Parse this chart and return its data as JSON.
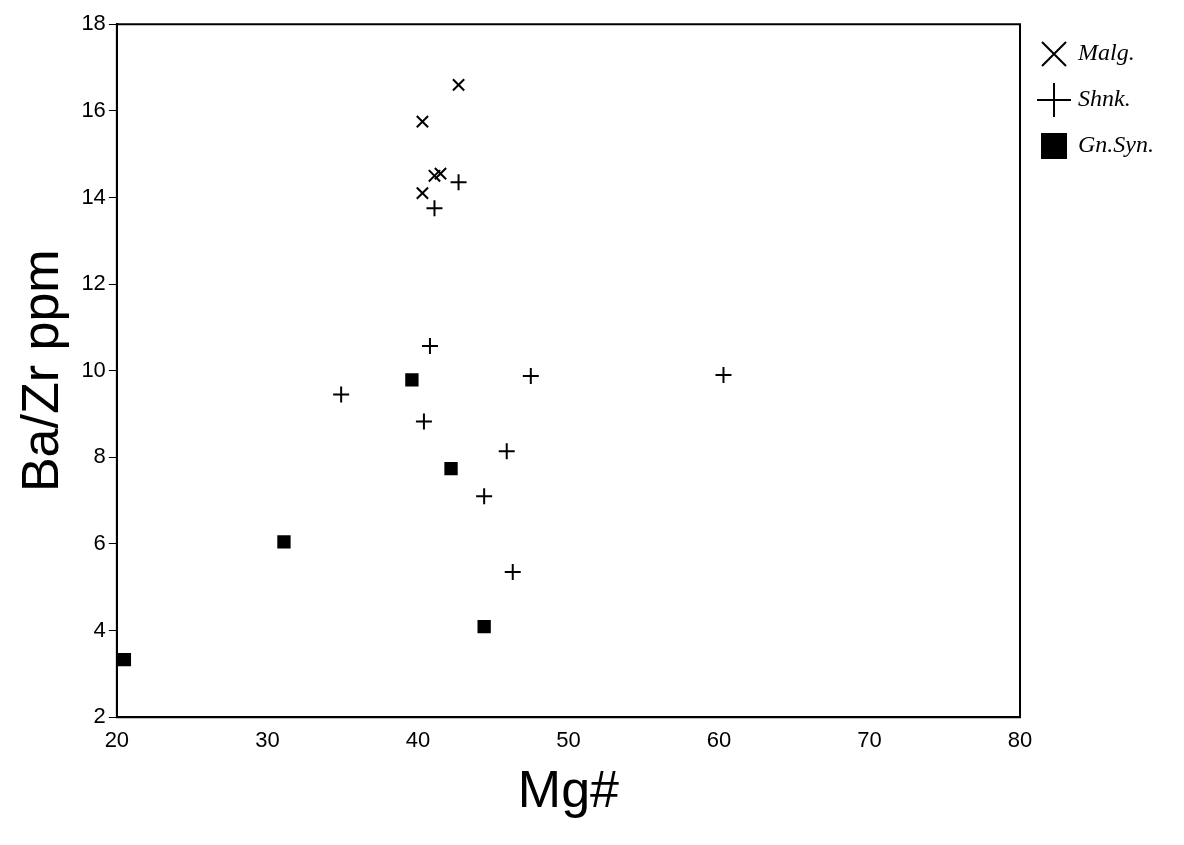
{
  "chart_data": {
    "type": "scatter",
    "xlabel": "Mg#",
    "ylabel": "Ba/Zr ppm",
    "xlim": [
      20,
      80
    ],
    "ylim": [
      2,
      18
    ],
    "xticks": [
      20,
      30,
      40,
      50,
      60,
      70,
      80
    ],
    "yticks": [
      2,
      4,
      6,
      8,
      10,
      12,
      14,
      16,
      18
    ],
    "grid": false,
    "legend": "top right",
    "series": [
      {
        "name": "Malg.",
        "color": "#000000",
        "marker": "cross",
        "x": [
          42.7,
          40.3,
          41.1,
          41.5,
          40.3
        ],
        "values": [
          16.6,
          15.75,
          14.5,
          14.55,
          14.1
        ]
      },
      {
        "name": "Shnk.",
        "color": "#000000",
        "marker": "plus",
        "x": [
          42.7,
          41.1,
          40.8,
          34.9,
          40.4,
          47.5,
          45.9,
          44.4,
          46.3,
          60.3
        ],
        "values": [
          14.35,
          13.75,
          10.57,
          9.45,
          8.83,
          9.88,
          8.14,
          7.1,
          5.35,
          9.9
        ]
      },
      {
        "name": "Gn.Syn.",
        "color": "#000000",
        "marker": "square",
        "x": [
          39.6,
          42.2,
          31.1,
          20.5,
          44.4
        ],
        "values": [
          9.79,
          7.74,
          6.05,
          3.33,
          4.09
        ]
      }
    ]
  }
}
